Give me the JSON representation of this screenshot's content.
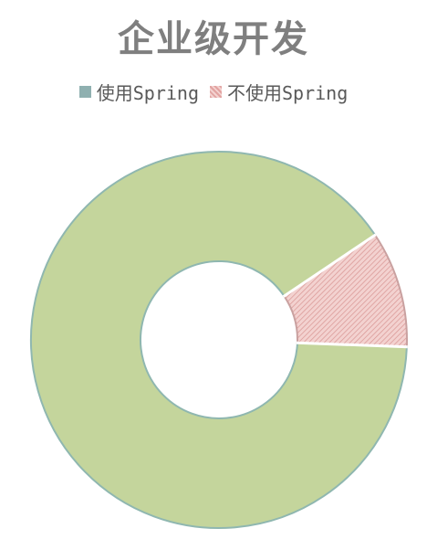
{
  "chart_data": {
    "type": "pie",
    "title": "企业级开发",
    "donut": true,
    "legend_position": "top",
    "series": [
      {
        "name": "使用Spring",
        "value": 90,
        "color": "#c4d59c",
        "stroke": "#8fb7b0",
        "swatch": "#8fb0b0",
        "pattern": false
      },
      {
        "name": "不使用Spring",
        "value": 10,
        "color": "#f1c9c7",
        "stroke": "#c9a1a0",
        "swatch": "#e2a3a1",
        "pattern": true
      }
    ]
  }
}
